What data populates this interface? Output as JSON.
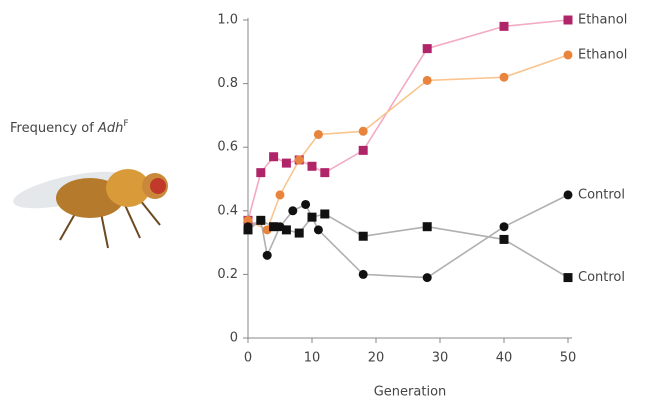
{
  "chart_data": {
    "type": "line",
    "ylabel": {
      "text": "Frequency of ",
      "gene": "Adh",
      "allele": "F"
    },
    "xlabel": "Generation",
    "xlim": [
      0,
      50
    ],
    "ylim": [
      0,
      1.0
    ],
    "xticks": [
      0,
      10,
      20,
      30,
      40,
      50
    ],
    "yticks": [
      0,
      0.2,
      0.4,
      0.6,
      0.8,
      {
        "value": 1.0,
        "label": "1.0"
      }
    ],
    "series": [
      {
        "name": "Ethanol",
        "marker": "square",
        "color": "#b0256a",
        "line_color": "#f4a9c4",
        "x": [
          0,
          2,
          4,
          6,
          8,
          10,
          12,
          18,
          28,
          40,
          50
        ],
        "values": [
          0.37,
          0.52,
          0.57,
          0.55,
          0.56,
          0.54,
          0.52,
          0.59,
          0.91,
          0.98,
          1.0
        ]
      },
      {
        "name": "Ethanol",
        "marker": "circle",
        "color": "#e8843c",
        "line_color": "#f9c48e",
        "x": [
          0,
          3,
          5,
          8,
          11,
          18,
          28,
          40,
          50
        ],
        "values": [
          0.37,
          0.34,
          0.45,
          0.56,
          0.64,
          0.65,
          0.81,
          0.82,
          0.89
        ]
      },
      {
        "name": "Control",
        "marker": "circle",
        "color": "#111111",
        "line_color": "#b0b0b0",
        "x": [
          0,
          2,
          3,
          5,
          7,
          9,
          11,
          18,
          28,
          40,
          50
        ],
        "values": [
          0.35,
          0.37,
          0.26,
          0.35,
          0.4,
          0.42,
          0.34,
          0.2,
          0.19,
          0.35,
          0.45
        ]
      },
      {
        "name": "Control",
        "marker": "square",
        "color": "#111111",
        "line_color": "#b0b0b0",
        "x": [
          0,
          2,
          4,
          6,
          8,
          10,
          12,
          18,
          28,
          40,
          50
        ],
        "values": [
          0.34,
          0.37,
          0.35,
          0.34,
          0.33,
          0.38,
          0.39,
          0.32,
          0.35,
          0.31,
          0.19
        ]
      }
    ]
  }
}
